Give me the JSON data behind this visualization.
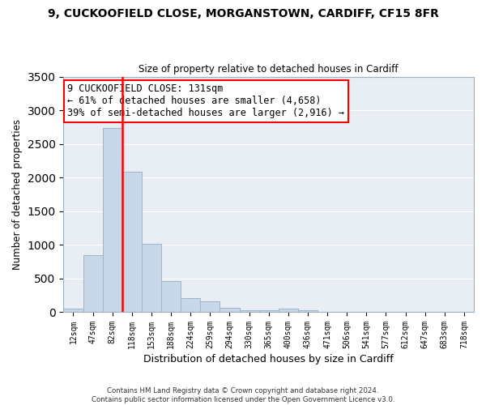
{
  "title_line1": "9, CUCKOOFIELD CLOSE, MORGANSTOWN, CARDIFF, CF15 8FR",
  "title_line2": "Size of property relative to detached houses in Cardiff",
  "xlabel": "Distribution of detached houses by size in Cardiff",
  "ylabel": "Number of detached properties",
  "bar_labels": [
    "12sqm",
    "47sqm",
    "82sqm",
    "118sqm",
    "153sqm",
    "188sqm",
    "224sqm",
    "259sqm",
    "294sqm",
    "330sqm",
    "365sqm",
    "400sqm",
    "436sqm",
    "471sqm",
    "506sqm",
    "541sqm",
    "577sqm",
    "612sqm",
    "647sqm",
    "683sqm",
    "718sqm"
  ],
  "bar_values": [
    55,
    850,
    2730,
    2080,
    1010,
    455,
    205,
    155,
    60,
    30,
    20,
    50,
    25,
    0,
    0,
    0,
    0,
    0,
    0,
    0,
    0
  ],
  "bar_color": "#c8d8e8",
  "bar_edge_color": "#a0b8cc",
  "vline_color": "red",
  "annotation_text": "9 CUCKOOFIELD CLOSE: 131sqm\n← 61% of detached houses are smaller (4,658)\n39% of semi-detached houses are larger (2,916) →",
  "annotation_box_color": "white",
  "annotation_box_edge": "red",
  "ylim": [
    0,
    3500
  ],
  "yticks": [
    0,
    500,
    1000,
    1500,
    2000,
    2500,
    3000,
    3500
  ],
  "plot_bg_color": "#e8eef4",
  "footer": "Contains HM Land Registry data © Crown copyright and database right 2024.\nContains public sector information licensed under the Open Government Licence v3.0."
}
